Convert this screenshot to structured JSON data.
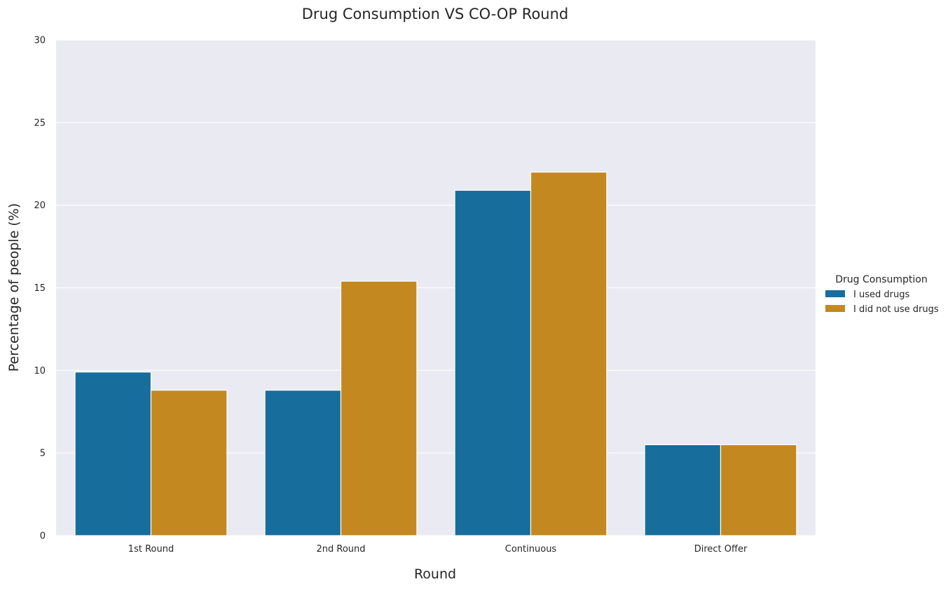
{
  "chart_data": {
    "type": "bar",
    "title": "Drug Consumption VS CO-OP Round",
    "xlabel": "Round",
    "ylabel": "Percentage of people (%)",
    "categories": [
      "1st Round",
      "2nd Round",
      "Continuous",
      "Direct Offer"
    ],
    "series": [
      {
        "name": "I used drugs",
        "values": [
          9.9,
          8.8,
          20.9,
          5.5
        ],
        "color": "#176d9c"
      },
      {
        "name": "I did not use drugs",
        "values": [
          8.8,
          15.4,
          22.0,
          5.5
        ],
        "color": "#c38820"
      }
    ],
    "ylim": [
      0,
      30
    ],
    "yticks": [
      0,
      5,
      10,
      15,
      20,
      25,
      30
    ],
    "grid": true,
    "legend": {
      "title": "Drug Consumption",
      "placement": "right"
    },
    "colors": {
      "background": "#eaeaf2",
      "grid": "#ffffff"
    }
  }
}
